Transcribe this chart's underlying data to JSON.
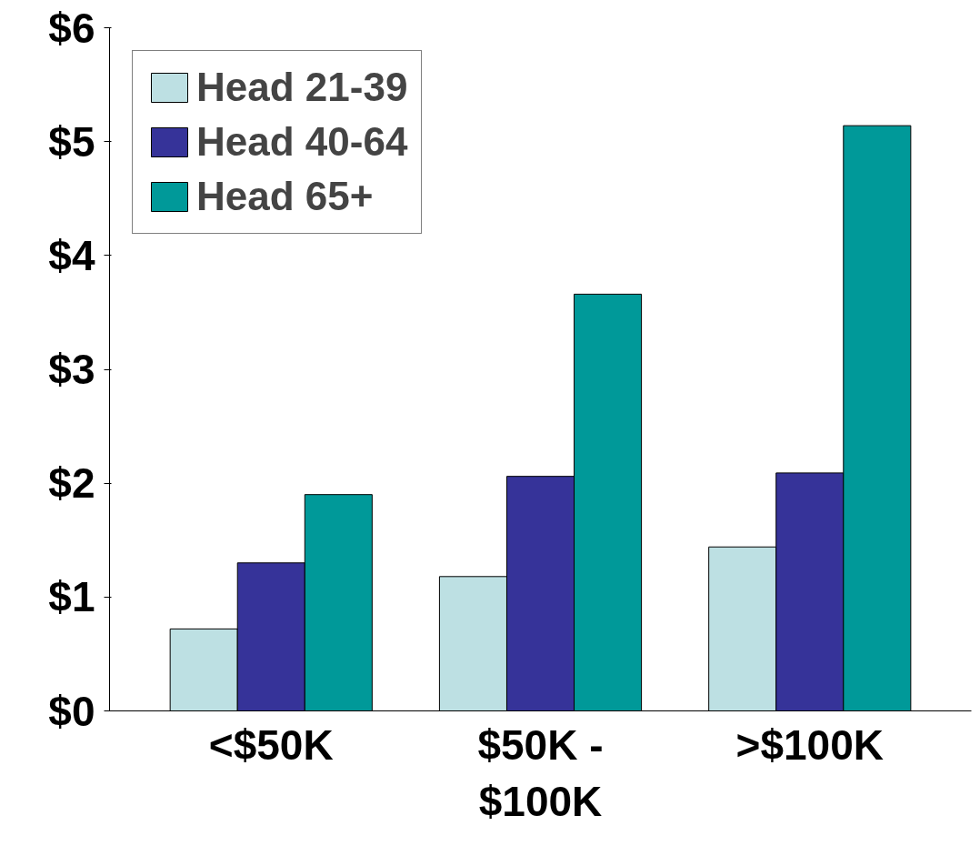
{
  "chart_data": {
    "type": "bar",
    "categories": [
      "<$50K",
      "$50K - $100K",
      ">$100K"
    ],
    "series": [
      {
        "name": "Head 21-39",
        "color": "#bde0e3",
        "values": [
          0.72,
          1.18,
          1.44
        ]
      },
      {
        "name": "Head 40-64",
        "color": "#363399",
        "values": [
          1.3,
          2.06,
          2.09
        ]
      },
      {
        "name": "Head 65+",
        "color": "#009999",
        "values": [
          1.9,
          3.66,
          5.14
        ]
      }
    ],
    "ylim": [
      0,
      6
    ],
    "yticks": [
      {
        "value": 0,
        "label": "$0"
      },
      {
        "value": 1,
        "label": "$1"
      },
      {
        "value": 2,
        "label": "$2"
      },
      {
        "value": 3,
        "label": "$3"
      },
      {
        "value": 4,
        "label": "$4"
      },
      {
        "value": 5,
        "label": "$5"
      },
      {
        "value": 6,
        "label": "$6"
      }
    ],
    "grid": false,
    "legend": "top left"
  }
}
